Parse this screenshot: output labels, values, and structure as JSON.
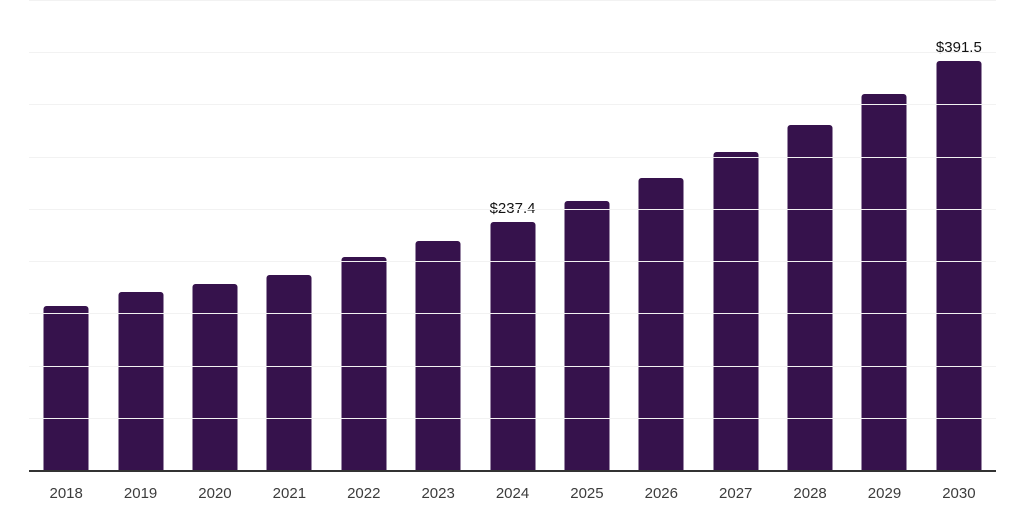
{
  "chart_data": {
    "type": "bar",
    "title": "",
    "xlabel": "",
    "ylabel": "",
    "categories": [
      "2018",
      "2019",
      "2020",
      "2021",
      "2022",
      "2023",
      "2024",
      "2025",
      "2026",
      "2027",
      "2028",
      "2029",
      "2030"
    ],
    "values": [
      157.5,
      170.0,
      178.0,
      186.4,
      203.7,
      219.0,
      237.4,
      257.8,
      279.5,
      304.5,
      330.7,
      360.0,
      391.5
    ],
    "data_labels": [
      null,
      null,
      null,
      null,
      null,
      null,
      "$237.4",
      null,
      null,
      null,
      null,
      null,
      "$391.5"
    ],
    "ylim": [
      0,
      450
    ],
    "gridline_step": 50,
    "grid": true,
    "legend": false,
    "y_tick_labels_visible": false,
    "colors": {
      "bar": "#36124C",
      "axis_line": "#333333",
      "gridline": "#f2f2f2",
      "value_label": "#121212",
      "tick_label": "#3c3c3c",
      "background": "#ffffff"
    }
  }
}
